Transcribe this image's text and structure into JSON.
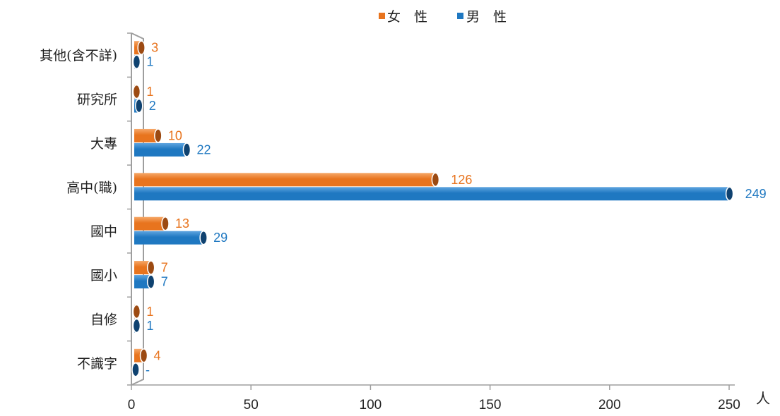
{
  "colors": {
    "female": "#e8741e",
    "female_cap": "#9c4a12",
    "male": "#1f78c1",
    "male_cap": "#0f4270",
    "axis": "#9e9e9e",
    "text": "#222222"
  },
  "chart_data": {
    "type": "bar",
    "orientation": "horizontal",
    "categories": [
      "其他(含不詳)",
      "研究所",
      "大專",
      "高中(職)",
      "國中",
      "國小",
      "自修",
      "不識字"
    ],
    "series": [
      {
        "name": "女　性",
        "values": [
          3,
          1,
          10,
          126,
          13,
          7,
          1,
          4
        ],
        "labels": [
          "3",
          "1",
          "10",
          "126",
          "13",
          "7",
          "1",
          "4"
        ]
      },
      {
        "name": "男　性",
        "values": [
          1,
          2,
          22,
          249,
          29,
          7,
          1,
          0
        ],
        "labels": [
          "1",
          "2",
          "22",
          "249",
          "29",
          "7",
          "1",
          "-"
        ]
      }
    ],
    "xlim": [
      0,
      250
    ],
    "xticks": [
      0,
      50,
      100,
      150,
      200,
      250
    ],
    "xticklabels": [
      "0",
      "50",
      "100",
      "150",
      "200",
      "250"
    ],
    "unit_label": "人",
    "legend_position": "top-center",
    "grid": false
  }
}
